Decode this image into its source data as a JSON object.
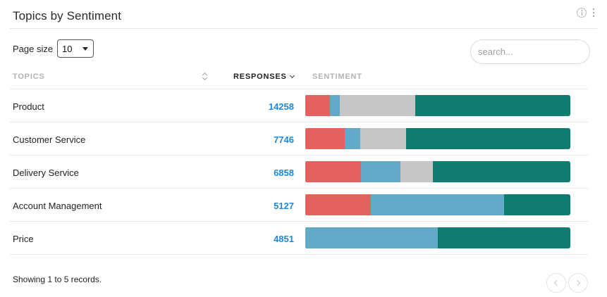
{
  "header": {
    "title": "Topics by Sentiment",
    "icons": [
      "info-icon",
      "more-vertical-icon"
    ]
  },
  "controls": {
    "page_size_label": "Page size",
    "page_size_value": "10",
    "search_placeholder": "search..."
  },
  "table": {
    "columns": [
      "TOPICS",
      "RESPONSES",
      "SENTIMENT"
    ],
    "sort_column": "RESPONSES",
    "sort_direction": "descending",
    "rows": [
      {
        "topic": "Product",
        "responses": "14258",
        "sentiment": [
          0.093,
          0.037,
          0.285,
          0.585
        ]
      },
      {
        "topic": "Customer Service",
        "responses": "7746",
        "sentiment": [
          0.149,
          0.059,
          0.173,
          0.619
        ]
      },
      {
        "topic": "Delivery Service",
        "responses": "6858",
        "sentiment": [
          0.21,
          0.149,
          0.122,
          0.519
        ]
      },
      {
        "topic": "Account Management",
        "responses": "5127",
        "sentiment": [
          0.247,
          0.503,
          0.0,
          0.25
        ]
      },
      {
        "topic": "Price",
        "responses": "4851",
        "sentiment": [
          0.0,
          0.5,
          0.0,
          0.5
        ]
      }
    ]
  },
  "sentiment_colors": {
    "negative": "#e4625d",
    "mixed": "#63aac9",
    "neutral": "#c6c6c6",
    "positive": "#0e7c6e"
  },
  "footer": {
    "status": "Showing 1 to 5 records."
  }
}
